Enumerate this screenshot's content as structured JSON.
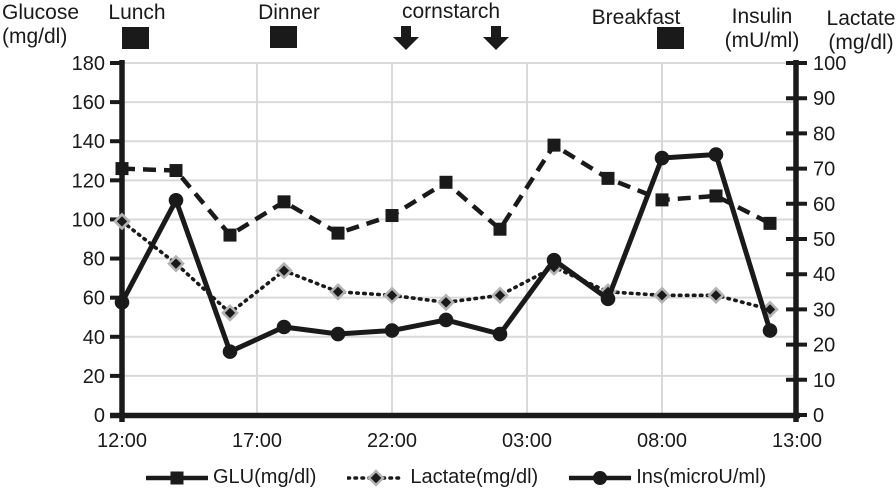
{
  "chart_data": {
    "type": "line",
    "title": "",
    "left_axis": {
      "title_lines": [
        "Glucose",
        "(mg/dl)"
      ],
      "min": 0,
      "max": 180,
      "step": 20,
      "tick_labels": [
        "180",
        "160",
        "140",
        "120",
        "100",
        "80",
        "60",
        "40",
        "20",
        "0"
      ]
    },
    "right_axis": {
      "insulin_title_lines": [
        "Insulin",
        "(mU/ml)"
      ],
      "lactate_title_lines": [
        "Lactate",
        "(mg/dl)"
      ],
      "min": 0,
      "max": 100,
      "step": 10,
      "tick_labels": [
        "100",
        "90",
        "80",
        "70",
        "60",
        "50",
        "40",
        "30",
        "20",
        "10",
        "0"
      ]
    },
    "x_axis": {
      "tick_labels": [
        "12:00",
        "17:00",
        "22:00",
        "03:00",
        "08:00",
        "13:00"
      ],
      "tick_hours": [
        0,
        5,
        10,
        15,
        20,
        25
      ],
      "span_hours": 25
    },
    "point_times": [
      "12:00",
      "14:00",
      "16:00",
      "18:00",
      "20:00",
      "22:00",
      "00:00",
      "02:00",
      "04:00",
      "06:00",
      "08:00",
      "10:00",
      "12:00"
    ],
    "point_hours": [
      0,
      2,
      4,
      6,
      8,
      10,
      12,
      14,
      16,
      18,
      20,
      22,
      24
    ],
    "series": [
      {
        "name": "GLU(mg/dl)",
        "axis": "left",
        "line_style": "dashed",
        "marker": "square",
        "values": [
          126,
          125,
          92,
          109,
          93,
          102,
          119,
          95,
          138,
          121,
          110,
          112,
          98
        ]
      },
      {
        "name": "Lactate(mg/dl)",
        "axis": "right",
        "line_style": "dotted",
        "marker": "diamond",
        "values": [
          55,
          43,
          29,
          41,
          35,
          34,
          32,
          34,
          42,
          35,
          34,
          34,
          30
        ]
      },
      {
        "name": "Ins(microU/ml)",
        "axis": "right",
        "line_style": "solid",
        "marker": "circle",
        "values": [
          32,
          61,
          18,
          25,
          23,
          24,
          27,
          23,
          44,
          33,
          73,
          74,
          24
        ]
      }
    ],
    "annotations": [
      {
        "label": "Lunch",
        "type": "square",
        "hour": 0.5
      },
      {
        "label": "Dinner",
        "type": "square",
        "hour": 6
      },
      {
        "label": "cornstarch",
        "type": "arrows",
        "hours": [
          10.5,
          13.8
        ]
      },
      {
        "label": "Breakfast",
        "type": "square",
        "hour": 20.3
      }
    ],
    "colors": {
      "series": "#1a1a1a",
      "grid": "#d9d9d9",
      "diamond_outline": "#b3b3b3"
    },
    "legend_position": "bottom",
    "grid": "on"
  }
}
